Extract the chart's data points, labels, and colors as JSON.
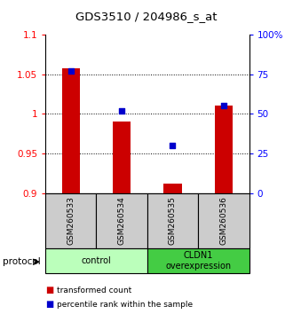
{
  "title": "GDS3510 / 204986_s_at",
  "samples": [
    "GSM260533",
    "GSM260534",
    "GSM260535",
    "GSM260536"
  ],
  "bar_values": [
    1.057,
    0.99,
    0.912,
    1.01
  ],
  "percentile_values": [
    77,
    52,
    30,
    55
  ],
  "bar_color": "#cc0000",
  "dot_color": "#0000cc",
  "ylim_left": [
    0.9,
    1.1
  ],
  "ylim_right": [
    0,
    100
  ],
  "yticks_left": [
    0.9,
    0.95,
    1.0,
    1.05,
    1.1
  ],
  "ytick_labels_left": [
    "0.9",
    "0.95",
    "1",
    "1.05",
    "1.1"
  ],
  "yticks_right": [
    0,
    25,
    50,
    75,
    100
  ],
  "ytick_labels_right": [
    "0",
    "25",
    "50",
    "75",
    "100%"
  ],
  "grid_lines": [
    0.95,
    1.0,
    1.05
  ],
  "groups": [
    {
      "label": "control",
      "samples": [
        0,
        1
      ],
      "color": "#bbffbb"
    },
    {
      "label": "CLDN1\noverexpression",
      "samples": [
        2,
        3
      ],
      "color": "#44cc44"
    }
  ],
  "protocol_label": "protocol",
  "legend_items": [
    {
      "color": "#cc0000",
      "label": "transformed count"
    },
    {
      "color": "#0000cc",
      "label": "percentile rank within the sample"
    }
  ],
  "background_color": "#ffffff",
  "plot_bg_color": "#ffffff",
  "bar_width": 0.35,
  "figsize": [
    3.3,
    3.54
  ],
  "dpi": 100
}
